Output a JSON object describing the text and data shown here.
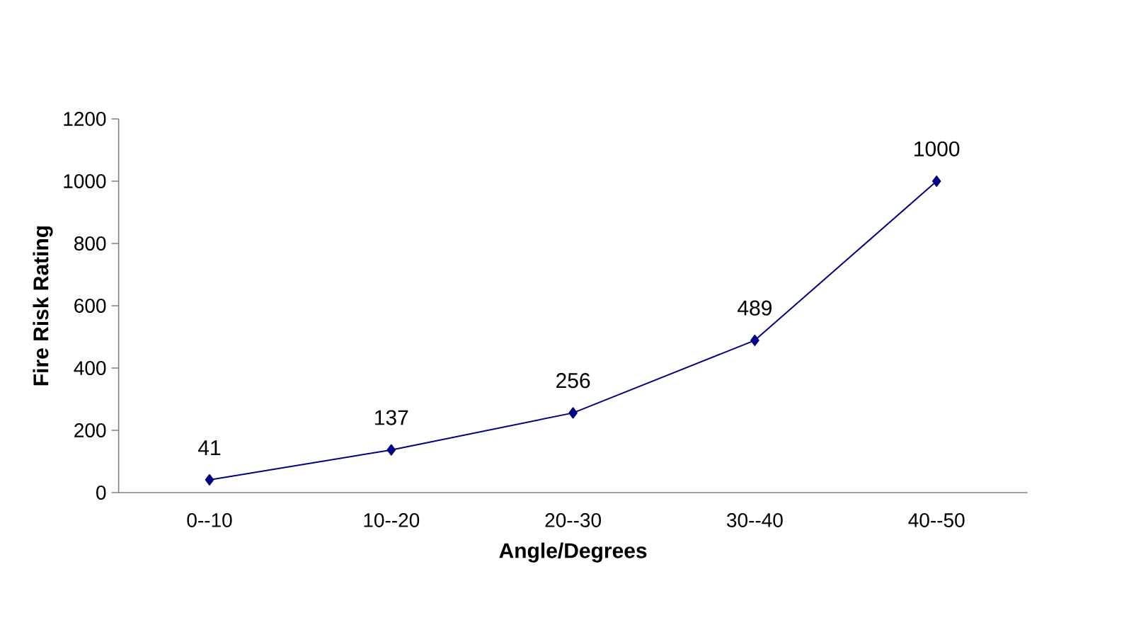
{
  "chart_data": {
    "type": "line",
    "xlabel": "Angle/Degrees",
    "ylabel": "Fire Risk Rating",
    "categories": [
      "0--10",
      "10--20",
      "20--30",
      "30--40",
      "40--50"
    ],
    "values": [
      41,
      137,
      256,
      489,
      1000
    ],
    "color": "#000080",
    "marker": "diamond",
    "line_style": "solid",
    "ylim": [
      0,
      1200
    ],
    "yticks": [
      0,
      200,
      400,
      600,
      800,
      1000,
      1200
    ],
    "data_labels": true
  }
}
